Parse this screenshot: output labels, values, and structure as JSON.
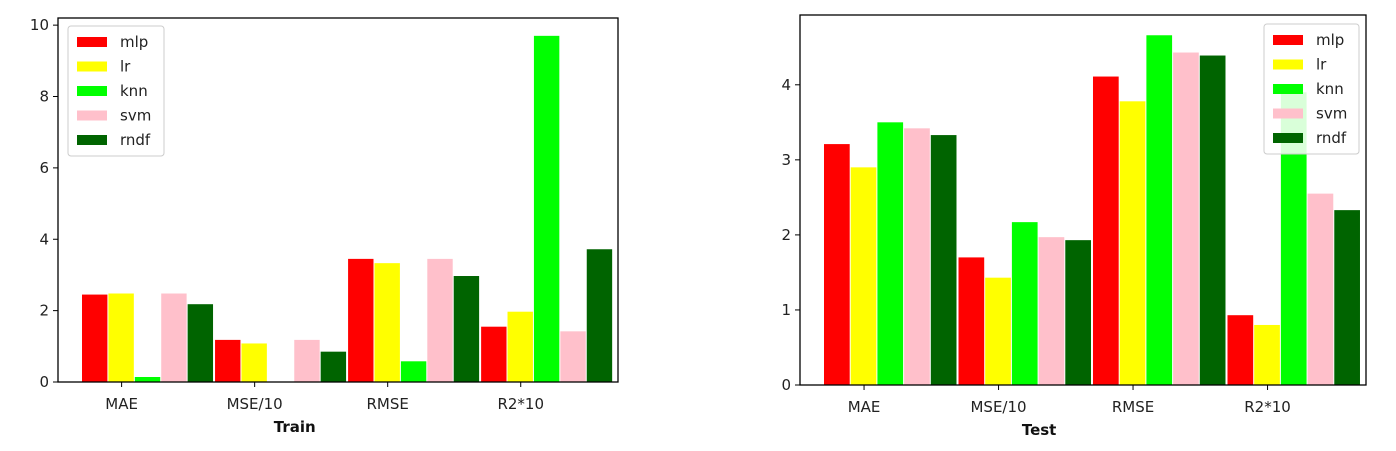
{
  "chart_data": [
    {
      "type": "bar",
      "xlabel": "Train",
      "categories": [
        "MAE",
        "MSE/10",
        "RMSE",
        "R2*10"
      ],
      "ylim": [
        0,
        10.2
      ],
      "yticks": [
        0,
        2,
        4,
        6,
        8,
        10
      ],
      "grid": false,
      "legend_position": "top-left",
      "series": [
        {
          "name": "mlp",
          "color": "#ff0000",
          "values": [
            2.45,
            1.18,
            3.45,
            1.55
          ]
        },
        {
          "name": "lr",
          "color": "#ffff00",
          "values": [
            2.48,
            1.08,
            3.33,
            1.97
          ]
        },
        {
          "name": "knn",
          "color": "#00ff00",
          "values": [
            0.14,
            0.0,
            0.58,
            9.7
          ]
        },
        {
          "name": "svm",
          "color": "#ffc0cb",
          "values": [
            2.48,
            1.18,
            3.45,
            1.42
          ]
        },
        {
          "name": "rndf",
          "color": "#006400",
          "values": [
            2.18,
            0.85,
            2.97,
            3.72
          ]
        }
      ]
    },
    {
      "type": "bar",
      "xlabel": "Test",
      "categories": [
        "MAE",
        "MSE/10",
        "RMSE",
        "R2*10"
      ],
      "ylim": [
        0,
        4.93
      ],
      "yticks": [
        0,
        1,
        2,
        3,
        4
      ],
      "grid": false,
      "legend_position": "top-right",
      "series": [
        {
          "name": "mlp",
          "color": "#ff0000",
          "values": [
            3.21,
            1.7,
            4.11,
            0.93
          ]
        },
        {
          "name": "lr",
          "color": "#ffff00",
          "values": [
            2.9,
            1.43,
            3.78,
            0.8
          ]
        },
        {
          "name": "knn",
          "color": "#00ff00",
          "values": [
            3.5,
            2.17,
            4.66,
            3.9
          ]
        },
        {
          "name": "svm",
          "color": "#ffc0cb",
          "values": [
            3.42,
            1.97,
            4.43,
            2.55
          ]
        },
        {
          "name": "rndf",
          "color": "#006400",
          "values": [
            3.33,
            1.93,
            4.39,
            2.33
          ]
        }
      ]
    }
  ]
}
